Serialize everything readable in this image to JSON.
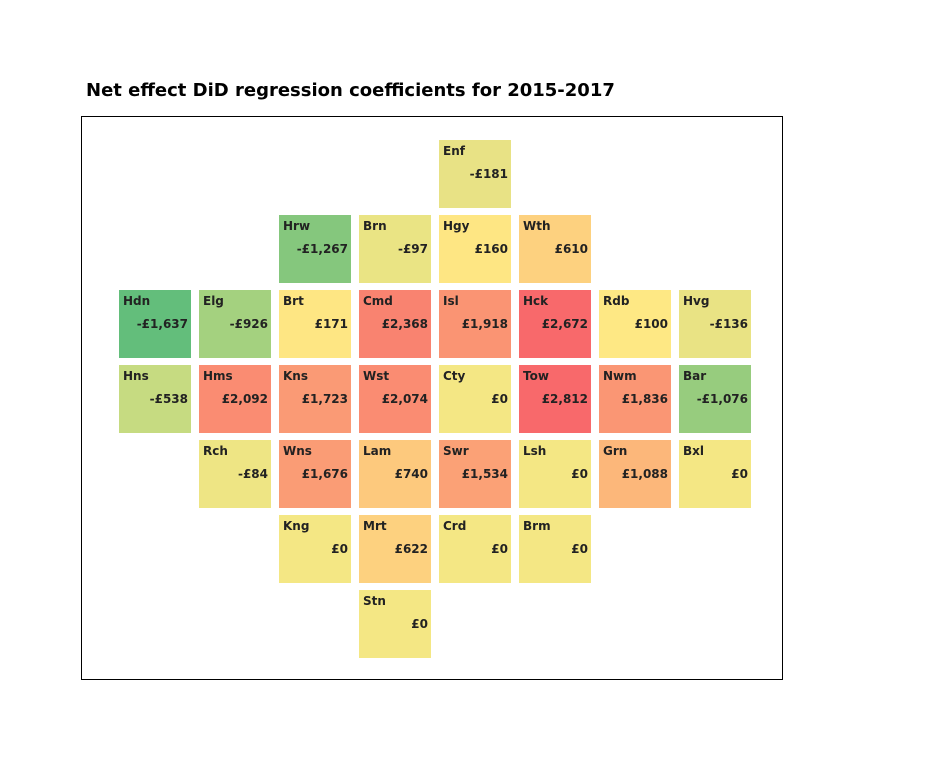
{
  "chart_data": {
    "type": "heatmap",
    "title": "Net effect DiD regression coefficients for 2015-2017",
    "tiles": [
      {
        "code": "Enf",
        "label": "-£181",
        "value": -181,
        "row": 0,
        "col": 4,
        "color": "#e8e285"
      },
      {
        "code": "Hrw",
        "label": "-£1,267",
        "value": -1267,
        "row": 1,
        "col": 2,
        "color": "#85c77d"
      },
      {
        "code": "Brn",
        "label": "-£97",
        "value": -97,
        "row": 1,
        "col": 3,
        "color": "#eae484"
      },
      {
        "code": "Hgy",
        "label": "£160",
        "value": 160,
        "row": 1,
        "col": 4,
        "color": "#fee683"
      },
      {
        "code": "Wth",
        "label": "£610",
        "value": 610,
        "row": 1,
        "col": 5,
        "color": "#fdd17f"
      },
      {
        "code": "Hdn",
        "label": "-£1,637",
        "value": -1637,
        "row": 2,
        "col": 0,
        "color": "#63be7b"
      },
      {
        "code": "Elg",
        "label": "-£926",
        "value": -926,
        "row": 2,
        "col": 1,
        "color": "#a4d17f"
      },
      {
        "code": "Brt",
        "label": "£171",
        "value": 171,
        "row": 2,
        "col": 2,
        "color": "#fee683"
      },
      {
        "code": "Cmd",
        "label": "£2,368",
        "value": 2368,
        "row": 2,
        "col": 3,
        "color": "#f98370"
      },
      {
        "code": "Isl",
        "label": "£1,918",
        "value": 1918,
        "row": 2,
        "col": 4,
        "color": "#fa9473"
      },
      {
        "code": "Hck",
        "label": "£2,672",
        "value": 2672,
        "row": 2,
        "col": 5,
        "color": "#f8696b"
      },
      {
        "code": "Rdb",
        "label": "£100",
        "value": 100,
        "row": 2,
        "col": 6,
        "color": "#fee884"
      },
      {
        "code": "Hvg",
        "label": "-£136",
        "value": -136,
        "row": 2,
        "col": 7,
        "color": "#e9e384"
      },
      {
        "code": "Hns",
        "label": "-£538",
        "value": -538,
        "row": 3,
        "col": 0,
        "color": "#c6db81"
      },
      {
        "code": "Hms",
        "label": "£2,092",
        "value": 2092,
        "row": 3,
        "col": 1,
        "color": "#fa8c72"
      },
      {
        "code": "Kns",
        "label": "£1,723",
        "value": 1723,
        "row": 3,
        "col": 2,
        "color": "#fa9a75"
      },
      {
        "code": "Wst",
        "label": "£2,074",
        "value": 2074,
        "row": 3,
        "col": 3,
        "color": "#fa8c72"
      },
      {
        "code": "Cty",
        "label": "£0",
        "value": 0,
        "row": 3,
        "col": 4,
        "color": "#f4e784"
      },
      {
        "code": "Tow",
        "label": "£2,812",
        "value": 2812,
        "row": 3,
        "col": 5,
        "color": "#f8696b"
      },
      {
        "code": "Nwm",
        "label": "£1,836",
        "value": 1836,
        "row": 3,
        "col": 6,
        "color": "#fa9674"
      },
      {
        "code": "Bar",
        "label": "-£1,076",
        "value": -1076,
        "row": 3,
        "col": 7,
        "color": "#97cc7e"
      },
      {
        "code": "Rch",
        "label": "-£84",
        "value": -84,
        "row": 4,
        "col": 1,
        "color": "#eee584"
      },
      {
        "code": "Wns",
        "label": "£1,676",
        "value": 1676,
        "row": 4,
        "col": 2,
        "color": "#fa9c75"
      },
      {
        "code": "Lam",
        "label": "£740",
        "value": 740,
        "row": 4,
        "col": 3,
        "color": "#fdc97d"
      },
      {
        "code": "Swr",
        "label": "£1,534",
        "value": 1534,
        "row": 4,
        "col": 4,
        "color": "#fba176"
      },
      {
        "code": "Lsh",
        "label": "£0",
        "value": 0,
        "row": 4,
        "col": 5,
        "color": "#f4e784"
      },
      {
        "code": "Grn",
        "label": "£1,088",
        "value": 1088,
        "row": 4,
        "col": 6,
        "color": "#fcb77a"
      },
      {
        "code": "Bxl",
        "label": "£0",
        "value": 0,
        "row": 4,
        "col": 7,
        "color": "#f4e784"
      },
      {
        "code": "Kng",
        "label": "£0",
        "value": 0,
        "row": 5,
        "col": 2,
        "color": "#f4e784"
      },
      {
        "code": "Mrt",
        "label": "£622",
        "value": 622,
        "row": 5,
        "col": 3,
        "color": "#fdd17f"
      },
      {
        "code": "Crd",
        "label": "£0",
        "value": 0,
        "row": 5,
        "col": 4,
        "color": "#f4e784"
      },
      {
        "code": "Brm",
        "label": "£0",
        "value": 0,
        "row": 5,
        "col": 5,
        "color": "#f4e784"
      },
      {
        "code": "Stn",
        "label": "£0",
        "value": 0,
        "row": 6,
        "col": 3,
        "color": "#f4e784"
      }
    ]
  }
}
